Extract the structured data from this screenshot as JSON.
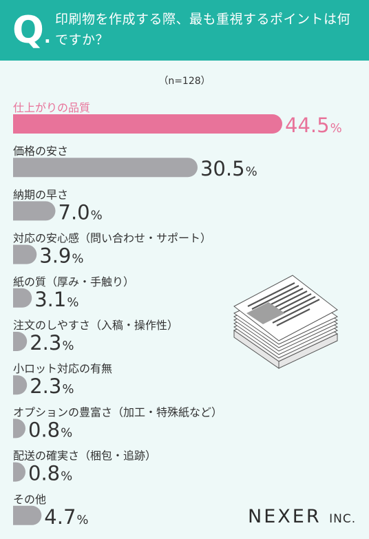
{
  "header": {
    "q_mark": "Q",
    "q_dot": ".",
    "question": "印刷物を作成する際、最も重視するポイントは何ですか？"
  },
  "sample": "（n=128）",
  "colors": {
    "header_bg": "#21b3a4",
    "highlight": "#e8739a",
    "bar": "#a6a6aa",
    "text": "#333333",
    "background": "#eef9f8"
  },
  "chart_data": {
    "type": "bar",
    "orientation": "horizontal",
    "unit": "%",
    "categories": [
      "仕上がりの品質",
      "価格の安さ",
      "納期の早さ",
      "対応の安心感（問い合わせ・サポート）",
      "紙の質（厚み・手触り）",
      "注文のしやすさ（入稿・操作性）",
      "小ロット対応の有無",
      "オプションの豊富さ（加工・特殊紙など）",
      "配送の確実さ（梱包・追跡）",
      "その他"
    ],
    "values": [
      44.5,
      30.5,
      7.0,
      3.9,
      3.1,
      2.3,
      2.3,
      0.8,
      0.8,
      4.7
    ],
    "highlight_index": 0
  },
  "logo": {
    "main": "NEXER",
    "suffix": "INC."
  },
  "illustration": "stack-of-documents-icon"
}
